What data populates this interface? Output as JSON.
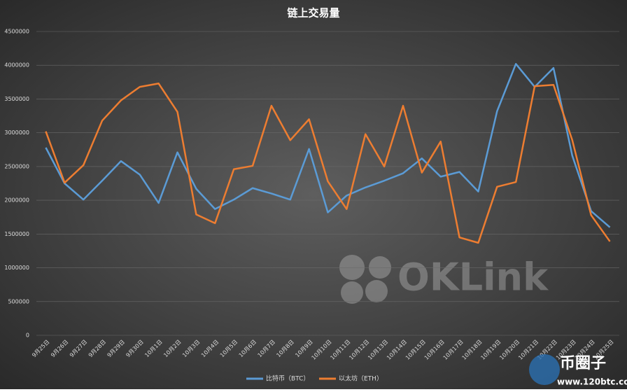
{
  "chart_data": {
    "type": "line",
    "title": "链上交易量",
    "categories": [
      "9月25日",
      "9月26日",
      "9月27日",
      "9月28日",
      "9月29日",
      "9月30日",
      "10月1日",
      "10月2日",
      "10月3日",
      "10月4日",
      "10月5日",
      "10月6日",
      "10月7日",
      "10月8日",
      "10月9日",
      "10月10日",
      "10月11日",
      "10月12日",
      "10月13日",
      "10月14日",
      "10月15日",
      "10月16日",
      "10月17日",
      "10月18日",
      "10月19日",
      "10月20日",
      "10月21日",
      "10月22日",
      "10月23日",
      "10月24日",
      "10月25日"
    ],
    "series": [
      {
        "name": "比特币（BTC）",
        "color": "#5b9bd5",
        "values": [
          2780000,
          2250000,
          2010000,
          2290000,
          2580000,
          2380000,
          1960000,
          2710000,
          2170000,
          1870000,
          2010000,
          2180000,
          2100000,
          2010000,
          2760000,
          1820000,
          2070000,
          2190000,
          2290000,
          2400000,
          2620000,
          2350000,
          2420000,
          2130000,
          3320000,
          4020000,
          3680000,
          3960000,
          2660000,
          1840000,
          1600000
        ]
      },
      {
        "name": "以太坊（ETH）",
        "color": "#ed7d31",
        "values": [
          3020000,
          2260000,
          2520000,
          3180000,
          3480000,
          3680000,
          3730000,
          3310000,
          1790000,
          1660000,
          2460000,
          2510000,
          3400000,
          2890000,
          3200000,
          2280000,
          1870000,
          2980000,
          2500000,
          3400000,
          2410000,
          2870000,
          1450000,
          1370000,
          2200000,
          2270000,
          3690000,
          3710000,
          2890000,
          1780000,
          1390000
        ]
      }
    ],
    "ylim": [
      0,
      4500000
    ],
    "yticks": [
      0,
      500000,
      1000000,
      1500000,
      2000000,
      2500000,
      3000000,
      3500000,
      4000000,
      4500000
    ],
    "grid": true,
    "legend": "bottom"
  },
  "watermarks": {
    "oklink": "OKLink",
    "site_name": "币圈子",
    "site_url": "www.120btc.com"
  }
}
